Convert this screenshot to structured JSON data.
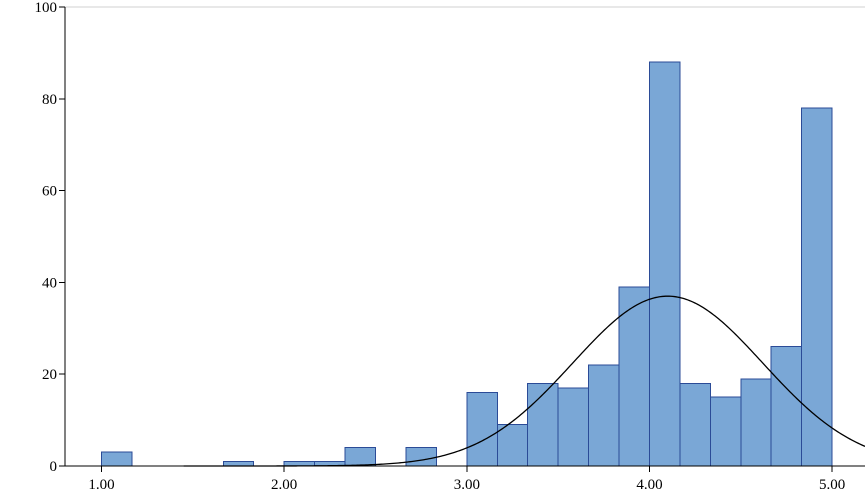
{
  "chart_data": {
    "type": "bar",
    "title": "",
    "xlabel": "",
    "ylabel": "",
    "xlim": [
      0.8,
      5.18
    ],
    "ylim": [
      0,
      100
    ],
    "x_ticks": [
      1,
      2,
      3,
      4,
      5
    ],
    "x_tick_labels": [
      "1.00",
      "2.00",
      "3.00",
      "4.00",
      "5.00"
    ],
    "y_ticks": [
      0,
      20,
      40,
      60,
      80,
      100
    ],
    "y_tick_labels": [
      "0",
      "20",
      "40",
      "60",
      "80",
      "100"
    ],
    "bin_width": 0.1667,
    "bins": [
      {
        "start": 1.0,
        "value": 3
      },
      {
        "start": 1.1667,
        "value": 0
      },
      {
        "start": 1.3333,
        "value": 0
      },
      {
        "start": 1.5,
        "value": 0
      },
      {
        "start": 1.6667,
        "value": 1
      },
      {
        "start": 1.8333,
        "value": 0
      },
      {
        "start": 2.0,
        "value": 1
      },
      {
        "start": 2.1667,
        "value": 1
      },
      {
        "start": 2.3333,
        "value": 4
      },
      {
        "start": 2.5,
        "value": 0
      },
      {
        "start": 2.6667,
        "value": 4
      },
      {
        "start": 2.8333,
        "value": 0
      },
      {
        "start": 3.0,
        "value": 16
      },
      {
        "start": 3.1667,
        "value": 9
      },
      {
        "start": 3.3333,
        "value": 18
      },
      {
        "start": 3.5,
        "value": 17
      },
      {
        "start": 3.6667,
        "value": 22
      },
      {
        "start": 3.8333,
        "value": 39
      },
      {
        "start": 4.0,
        "value": 88
      },
      {
        "start": 4.1667,
        "value": 18
      },
      {
        "start": 4.3333,
        "value": 15
      },
      {
        "start": 4.5,
        "value": 19
      },
      {
        "start": 4.6667,
        "value": 26
      },
      {
        "start": 4.8333,
        "value": 78
      }
    ],
    "normal_curve": {
      "mean": 4.1,
      "peak": 37,
      "sd": 0.52
    },
    "grid": false,
    "legend": "none",
    "colors": {
      "bar_fill": "#7aa7d6",
      "bar_stroke": "#2b4b97",
      "curve": "#000000",
      "axis": "#000000"
    }
  }
}
